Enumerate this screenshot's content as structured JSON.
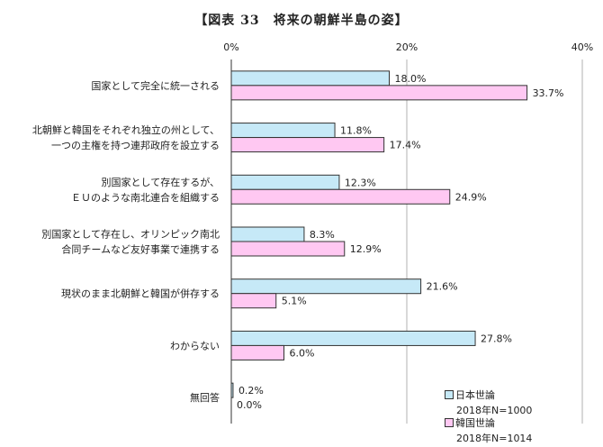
{
  "chart_data": {
    "type": "bar",
    "orientation": "horizontal",
    "title": "【図表 33　将来の朝鮮半島の姿】",
    "categories": [
      [
        "国家として完全に統一される"
      ],
      [
        "北朝鮮と韓国をそれぞれ独立の州として、",
        "一つの主権を持つ連邦政府を設立する"
      ],
      [
        "別国家として存在するが、",
        "ＥＵのような南北連合を組織する"
      ],
      [
        "別国家として存在し、オリンピック南北",
        "合同チームなど友好事業で連携する"
      ],
      [
        "現状のまま北朝鮮と韓国が併存する"
      ],
      [
        "わからない"
      ],
      [
        "無回答"
      ]
    ],
    "series": [
      {
        "name": "日本世論",
        "sample": "2018年N=1000",
        "color": "#c6e9f7",
        "values": [
          18.0,
          11.8,
          12.3,
          8.3,
          21.6,
          27.8,
          0.2
        ]
      },
      {
        "name": "韓国世論",
        "sample": "2018年N=1014",
        "color": "#ffc8f2",
        "values": [
          33.7,
          17.4,
          24.9,
          12.9,
          5.1,
          6.0,
          0.0
        ]
      }
    ],
    "value_labels": [
      [
        "18.0%",
        "11.8%",
        "12.3%",
        "8.3%",
        "21.6%",
        "27.8%",
        "0.2%"
      ],
      [
        "33.7%",
        "17.4%",
        "24.9%",
        "12.9%",
        "5.1%",
        "6.0%",
        "0.0%"
      ]
    ],
    "xlim": [
      0,
      40
    ],
    "ticks": [
      0,
      20,
      40
    ],
    "tick_labels": [
      "0%",
      "20%",
      "40%"
    ],
    "grid": true,
    "legend_position": "bottom-right"
  }
}
